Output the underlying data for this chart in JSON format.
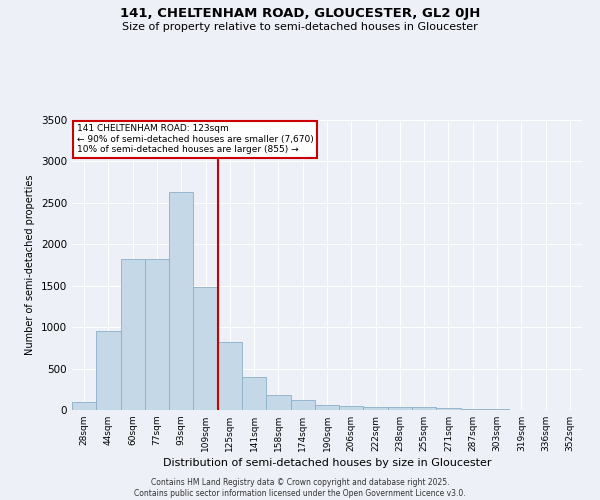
{
  "title": "141, CHELTENHAM ROAD, GLOUCESTER, GL2 0JH",
  "subtitle": "Size of property relative to semi-detached houses in Gloucester",
  "xlabel": "Distribution of semi-detached houses by size in Gloucester",
  "ylabel": "Number of semi-detached properties",
  "footer_line1": "Contains HM Land Registry data © Crown copyright and database right 2025.",
  "footer_line2": "Contains public sector information licensed under the Open Government Licence v3.0.",
  "annotation_line1": "141 CHELTENHAM ROAD: 123sqm",
  "annotation_line2": "← 90% of semi-detached houses are smaller (7,670)",
  "annotation_line3": "10% of semi-detached houses are larger (855) →",
  "bar_color": "#c5d8e8",
  "bar_edge_color": "#8bafc8",
  "vline_color": "#cc0000",
  "bg_color": "#eef0f8",
  "categories": [
    "28sqm",
    "44sqm",
    "60sqm",
    "77sqm",
    "93sqm",
    "109sqm",
    "125sqm",
    "141sqm",
    "158sqm",
    "174sqm",
    "190sqm",
    "206sqm",
    "222sqm",
    "238sqm",
    "255sqm",
    "271sqm",
    "287sqm",
    "303sqm",
    "319sqm",
    "336sqm",
    "352sqm"
  ],
  "values": [
    95,
    950,
    1820,
    1820,
    2630,
    1480,
    820,
    400,
    185,
    120,
    65,
    50,
    40,
    35,
    40,
    20,
    15,
    8,
    5,
    3,
    2
  ],
  "vline_position": 6,
  "ylim": [
    0,
    3500
  ],
  "yticks": [
    0,
    500,
    1000,
    1500,
    2000,
    2500,
    3000,
    3500
  ]
}
